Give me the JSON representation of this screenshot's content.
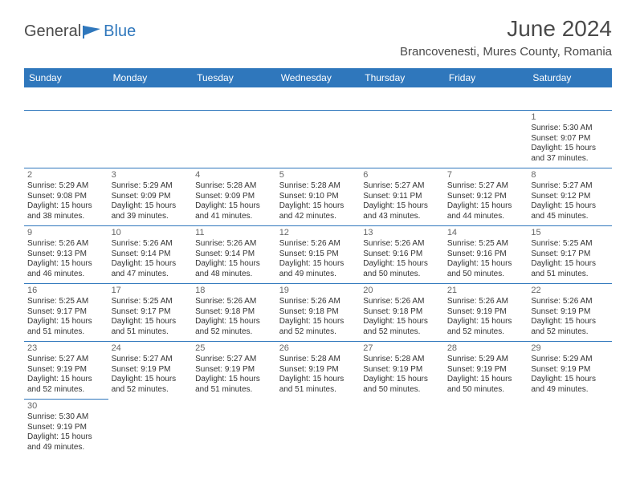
{
  "logo": {
    "general": "General",
    "blue": "Blue"
  },
  "title": "June 2024",
  "location": "Brancovenesti, Mures County, Romania",
  "colors": {
    "header_bg": "#2f77bc",
    "header_text": "#ffffff",
    "title_color": "#4a4a4a",
    "border_color": "#2f77bc",
    "cell_text": "#333333",
    "daynum_color": "#666666",
    "background": "#ffffff"
  },
  "typography": {
    "title_fontsize": 28,
    "location_fontsize": 15,
    "header_fontsize": 12,
    "cell_fontsize": 10,
    "daynum_fontsize": 11
  },
  "dayHeaders": [
    "Sunday",
    "Monday",
    "Tuesday",
    "Wednesday",
    "Thursday",
    "Friday",
    "Saturday"
  ],
  "weeks": [
    [
      null,
      null,
      null,
      null,
      null,
      null,
      {
        "n": "1",
        "sr": "5:30 AM",
        "ss": "9:07 PM",
        "dl": "15 hours and 37 minutes."
      }
    ],
    [
      {
        "n": "2",
        "sr": "5:29 AM",
        "ss": "9:08 PM",
        "dl": "15 hours and 38 minutes."
      },
      {
        "n": "3",
        "sr": "5:29 AM",
        "ss": "9:09 PM",
        "dl": "15 hours and 39 minutes."
      },
      {
        "n": "4",
        "sr": "5:28 AM",
        "ss": "9:09 PM",
        "dl": "15 hours and 41 minutes."
      },
      {
        "n": "5",
        "sr": "5:28 AM",
        "ss": "9:10 PM",
        "dl": "15 hours and 42 minutes."
      },
      {
        "n": "6",
        "sr": "5:27 AM",
        "ss": "9:11 PM",
        "dl": "15 hours and 43 minutes."
      },
      {
        "n": "7",
        "sr": "5:27 AM",
        "ss": "9:12 PM",
        "dl": "15 hours and 44 minutes."
      },
      {
        "n": "8",
        "sr": "5:27 AM",
        "ss": "9:12 PM",
        "dl": "15 hours and 45 minutes."
      }
    ],
    [
      {
        "n": "9",
        "sr": "5:26 AM",
        "ss": "9:13 PM",
        "dl": "15 hours and 46 minutes."
      },
      {
        "n": "10",
        "sr": "5:26 AM",
        "ss": "9:14 PM",
        "dl": "15 hours and 47 minutes."
      },
      {
        "n": "11",
        "sr": "5:26 AM",
        "ss": "9:14 PM",
        "dl": "15 hours and 48 minutes."
      },
      {
        "n": "12",
        "sr": "5:26 AM",
        "ss": "9:15 PM",
        "dl": "15 hours and 49 minutes."
      },
      {
        "n": "13",
        "sr": "5:26 AM",
        "ss": "9:16 PM",
        "dl": "15 hours and 50 minutes."
      },
      {
        "n": "14",
        "sr": "5:25 AM",
        "ss": "9:16 PM",
        "dl": "15 hours and 50 minutes."
      },
      {
        "n": "15",
        "sr": "5:25 AM",
        "ss": "9:17 PM",
        "dl": "15 hours and 51 minutes."
      }
    ],
    [
      {
        "n": "16",
        "sr": "5:25 AM",
        "ss": "9:17 PM",
        "dl": "15 hours and 51 minutes."
      },
      {
        "n": "17",
        "sr": "5:25 AM",
        "ss": "9:17 PM",
        "dl": "15 hours and 51 minutes."
      },
      {
        "n": "18",
        "sr": "5:26 AM",
        "ss": "9:18 PM",
        "dl": "15 hours and 52 minutes."
      },
      {
        "n": "19",
        "sr": "5:26 AM",
        "ss": "9:18 PM",
        "dl": "15 hours and 52 minutes."
      },
      {
        "n": "20",
        "sr": "5:26 AM",
        "ss": "9:18 PM",
        "dl": "15 hours and 52 minutes."
      },
      {
        "n": "21",
        "sr": "5:26 AM",
        "ss": "9:19 PM",
        "dl": "15 hours and 52 minutes."
      },
      {
        "n": "22",
        "sr": "5:26 AM",
        "ss": "9:19 PM",
        "dl": "15 hours and 52 minutes."
      }
    ],
    [
      {
        "n": "23",
        "sr": "5:27 AM",
        "ss": "9:19 PM",
        "dl": "15 hours and 52 minutes."
      },
      {
        "n": "24",
        "sr": "5:27 AM",
        "ss": "9:19 PM",
        "dl": "15 hours and 52 minutes."
      },
      {
        "n": "25",
        "sr": "5:27 AM",
        "ss": "9:19 PM",
        "dl": "15 hours and 51 minutes."
      },
      {
        "n": "26",
        "sr": "5:28 AM",
        "ss": "9:19 PM",
        "dl": "15 hours and 51 minutes."
      },
      {
        "n": "27",
        "sr": "5:28 AM",
        "ss": "9:19 PM",
        "dl": "15 hours and 50 minutes."
      },
      {
        "n": "28",
        "sr": "5:29 AM",
        "ss": "9:19 PM",
        "dl": "15 hours and 50 minutes."
      },
      {
        "n": "29",
        "sr": "5:29 AM",
        "ss": "9:19 PM",
        "dl": "15 hours and 49 minutes."
      }
    ],
    [
      {
        "n": "30",
        "sr": "5:30 AM",
        "ss": "9:19 PM",
        "dl": "15 hours and 49 minutes."
      },
      null,
      null,
      null,
      null,
      null,
      null
    ]
  ],
  "labels": {
    "sunrise": "Sunrise:",
    "sunset": "Sunset:",
    "daylight": "Daylight:"
  }
}
